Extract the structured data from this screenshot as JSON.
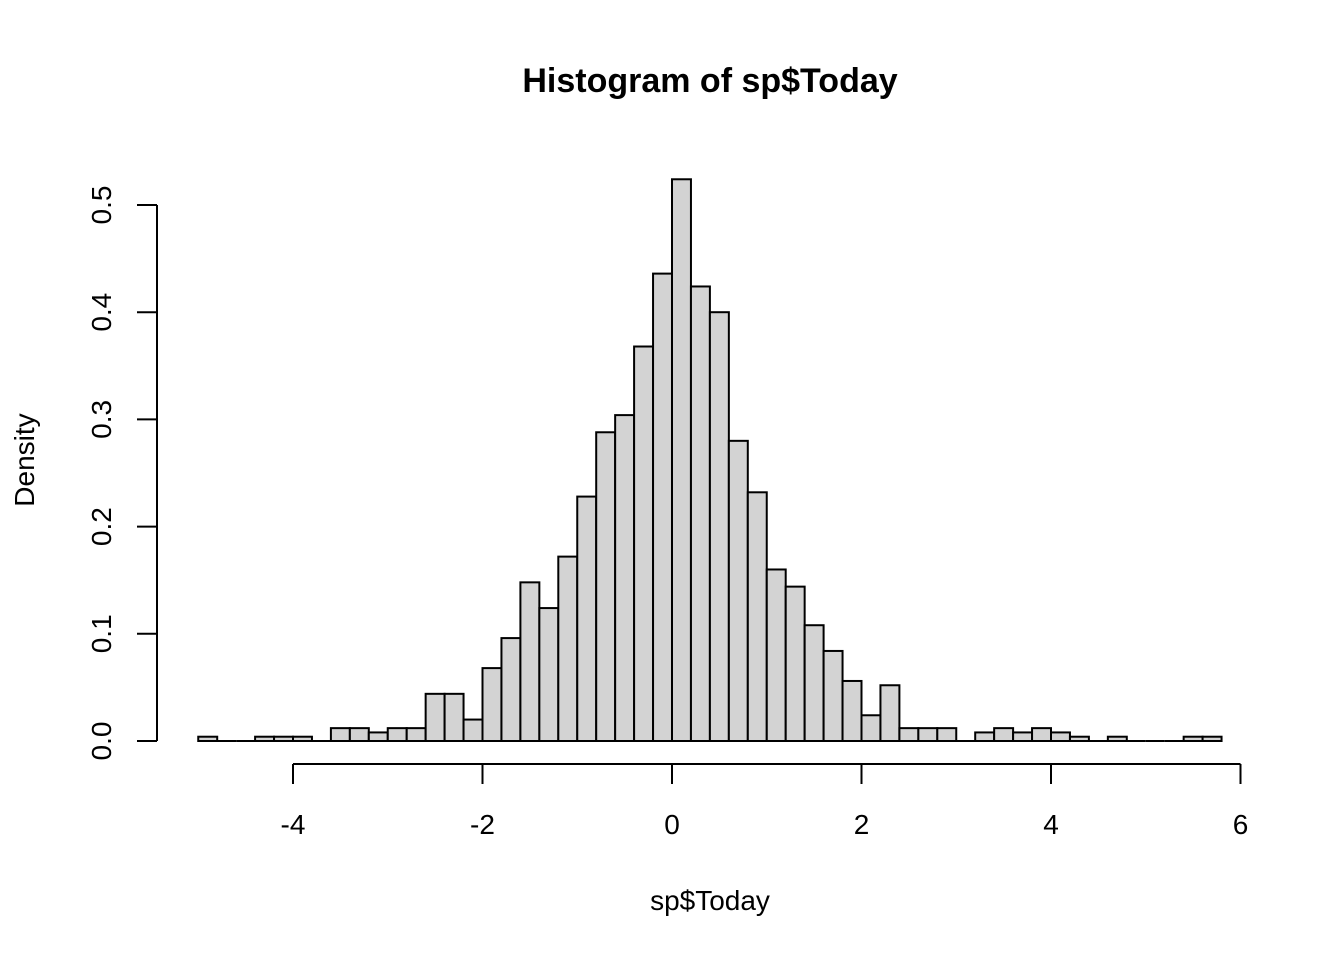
{
  "chart_data": {
    "type": "bar",
    "title": "Histogram of sp$Today",
    "xlabel": "sp$Today",
    "ylabel": "Density",
    "bar_color": "#d3d3d3",
    "border_color": "#000000",
    "bin_width": 0.2,
    "x_ticks": [
      -4,
      -2,
      0,
      2,
      4,
      6
    ],
    "x_tick_labels": [
      "-4",
      "-2",
      "0",
      "2",
      "4",
      "6"
    ],
    "y_ticks": [
      0.0,
      0.1,
      0.2,
      0.3,
      0.4,
      0.5
    ],
    "y_tick_labels": [
      "0.0",
      "0.1",
      "0.2",
      "0.3",
      "0.4",
      "0.5"
    ],
    "ylim": [
      0,
      0.5
    ],
    "xlim_axis": [
      -4,
      6
    ],
    "bins": [
      {
        "left": -5.0,
        "density": 0.004
      },
      {
        "left": -4.8,
        "density": 0.0
      },
      {
        "left": -4.6,
        "density": 0.0
      },
      {
        "left": -4.4,
        "density": 0.004
      },
      {
        "left": -4.2,
        "density": 0.004
      },
      {
        "left": -4.0,
        "density": 0.004
      },
      {
        "left": -3.8,
        "density": 0.0
      },
      {
        "left": -3.6,
        "density": 0.012
      },
      {
        "left": -3.4,
        "density": 0.012
      },
      {
        "left": -3.2,
        "density": 0.008
      },
      {
        "left": -3.0,
        "density": 0.012
      },
      {
        "left": -2.8,
        "density": 0.012
      },
      {
        "left": -2.6,
        "density": 0.044
      },
      {
        "left": -2.4,
        "density": 0.044
      },
      {
        "left": -2.2,
        "density": 0.02
      },
      {
        "left": -2.0,
        "density": 0.068
      },
      {
        "left": -1.8,
        "density": 0.096
      },
      {
        "left": -1.6,
        "density": 0.148
      },
      {
        "left": -1.4,
        "density": 0.124
      },
      {
        "left": -1.2,
        "density": 0.172
      },
      {
        "left": -1.0,
        "density": 0.228
      },
      {
        "left": -0.8,
        "density": 0.288
      },
      {
        "left": -0.6,
        "density": 0.304
      },
      {
        "left": -0.4,
        "density": 0.368
      },
      {
        "left": -0.2,
        "density": 0.436
      },
      {
        "left": 0.0,
        "density": 0.524
      },
      {
        "left": 0.2,
        "density": 0.424
      },
      {
        "left": 0.4,
        "density": 0.4
      },
      {
        "left": 0.6,
        "density": 0.28
      },
      {
        "left": 0.8,
        "density": 0.232
      },
      {
        "left": 1.0,
        "density": 0.16
      },
      {
        "left": 1.2,
        "density": 0.144
      },
      {
        "left": 1.4,
        "density": 0.108
      },
      {
        "left": 1.6,
        "density": 0.084
      },
      {
        "left": 1.8,
        "density": 0.056
      },
      {
        "left": 2.0,
        "density": 0.024
      },
      {
        "left": 2.2,
        "density": 0.052
      },
      {
        "left": 2.4,
        "density": 0.012
      },
      {
        "left": 2.6,
        "density": 0.012
      },
      {
        "left": 2.8,
        "density": 0.012
      },
      {
        "left": 3.0,
        "density": 0.0
      },
      {
        "left": 3.2,
        "density": 0.008
      },
      {
        "left": 3.4,
        "density": 0.012
      },
      {
        "left": 3.6,
        "density": 0.008
      },
      {
        "left": 3.8,
        "density": 0.012
      },
      {
        "left": 4.0,
        "density": 0.008
      },
      {
        "left": 4.2,
        "density": 0.004
      },
      {
        "left": 4.4,
        "density": 0.0
      },
      {
        "left": 4.6,
        "density": 0.004
      },
      {
        "left": 4.8,
        "density": 0.0
      },
      {
        "left": 5.0,
        "density": 0.0
      },
      {
        "left": 5.2,
        "density": 0.0
      },
      {
        "left": 5.4,
        "density": 0.004
      },
      {
        "left": 5.6,
        "density": 0.004
      }
    ]
  }
}
